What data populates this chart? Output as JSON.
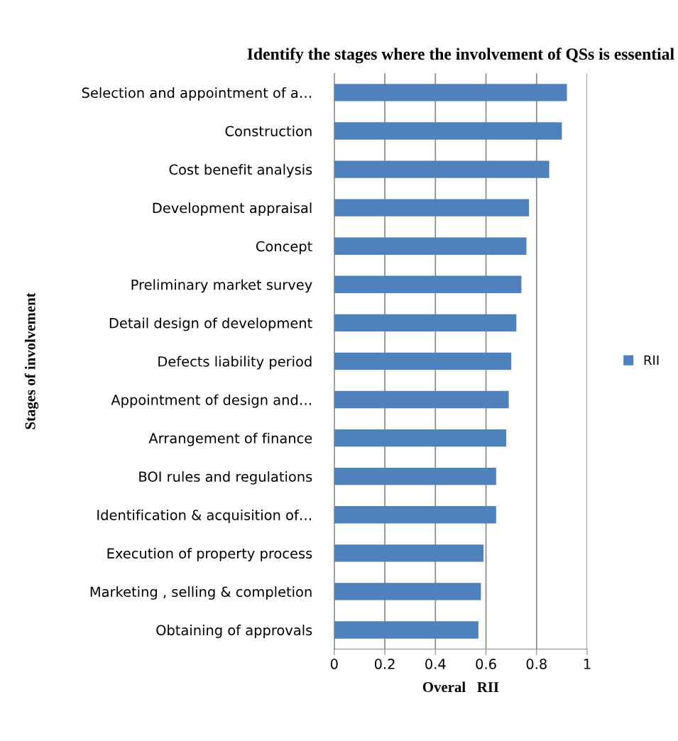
{
  "chart_data": {
    "type": "bar",
    "orientation": "horizontal",
    "title": "Identify the stages where the involvement of QSs is essential",
    "xlabel": "Overal   RII",
    "ylabel": "Stages of involvement",
    "categories": [
      "Selection and appointment of a…",
      "Construction",
      "Cost benefit analysis",
      "Development appraisal",
      "Concept",
      "Preliminary market survey",
      "Detail design of development",
      "Defects liability period",
      "Appointment of design and…",
      "Arrangement of finance",
      "BOI rules and regulations",
      "Identification & acquisition of…",
      "Execution of property process",
      "Marketing , selling & completion",
      "Obtaining of approvals"
    ],
    "series": [
      {
        "name": "RII",
        "color": "#4f81bd",
        "values": [
          0.92,
          0.9,
          0.85,
          0.77,
          0.76,
          0.74,
          0.72,
          0.7,
          0.69,
          0.68,
          0.64,
          0.64,
          0.59,
          0.58,
          0.57
        ]
      }
    ],
    "xlim": [
      0,
      1
    ],
    "xticks": [
      0,
      0.2,
      0.4,
      0.6,
      0.8,
      1
    ],
    "grid": "x",
    "legend": "right"
  }
}
